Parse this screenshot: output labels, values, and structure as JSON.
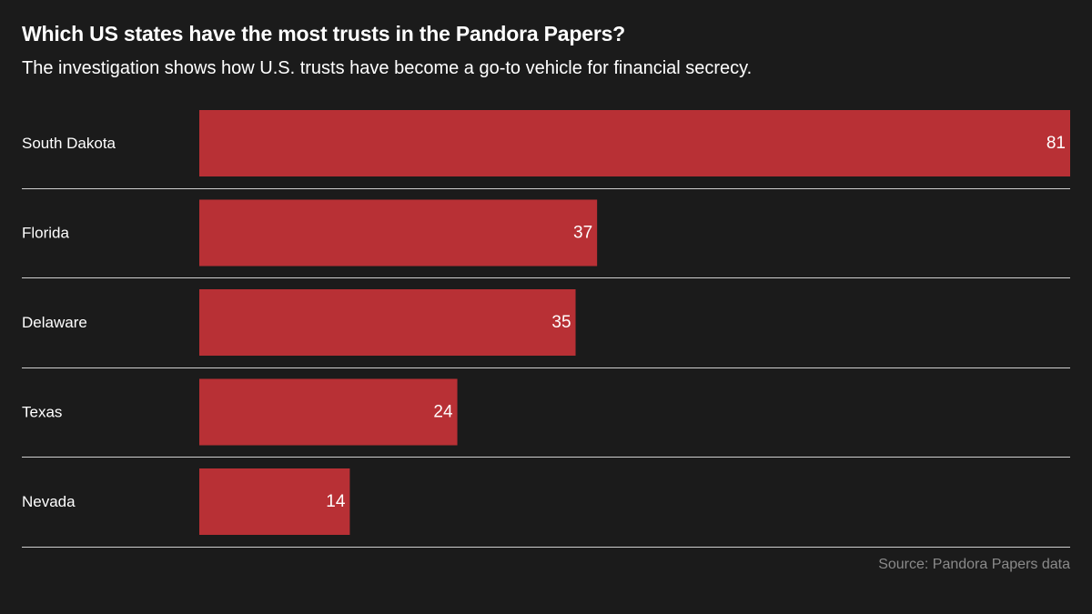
{
  "title": "Which US states have the most trusts in the Pandora Papers?",
  "subtitle": "The investigation shows how U.S. trusts have become a go-to vehicle for financial secrecy.",
  "source": "Source: Pandora Papers data",
  "colors": {
    "background": "#1b1b1b",
    "bar": "#b83035",
    "divider": "#cfcfcf",
    "text": "#ffffff",
    "source_text": "#8a8a8a"
  },
  "chart_data": {
    "type": "bar",
    "orientation": "horizontal",
    "categories": [
      "South Dakota",
      "Florida",
      "Delaware",
      "Texas",
      "Nevada"
    ],
    "values": [
      81,
      37,
      35,
      24,
      14
    ],
    "xlim": [
      0,
      81
    ],
    "data_labels": true,
    "grid": false,
    "legend": "none"
  }
}
